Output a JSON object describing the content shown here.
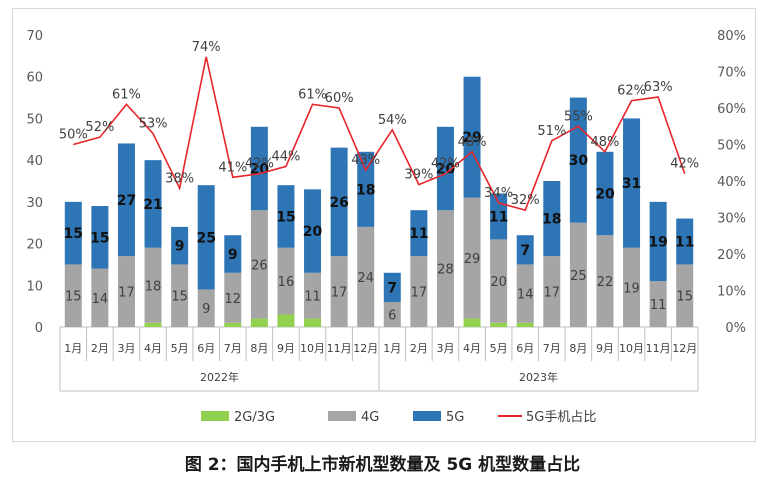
{
  "caption": "图 2：国内手机上市新机型数量及 5G 机型数量占比",
  "colors": {
    "c2g3g": "#92d050",
    "c4g": "#a5a5a5",
    "c5g": "#2e75b6",
    "line": "#e8262b"
  },
  "chart_data": {
    "type": "bar",
    "stacked": true,
    "categories": [
      "1月",
      "2月",
      "3月",
      "4月",
      "5月",
      "6月",
      "7月",
      "8月",
      "9月",
      "10月",
      "11月",
      "12月",
      "1月",
      "2月",
      "3月",
      "4月",
      "5月",
      "6月",
      "7月",
      "8月",
      "9月",
      "10月",
      "11月",
      "12月"
    ],
    "groups": [
      {
        "label": "2022年",
        "from": 0,
        "to": 11
      },
      {
        "label": "2023年",
        "from": 12,
        "to": 23
      }
    ],
    "series": [
      {
        "name": "2G/3G",
        "values": [
          0,
          0,
          0,
          1,
          0,
          0,
          1,
          2,
          3,
          2,
          0,
          0,
          0,
          0,
          0,
          2,
          1,
          1,
          0,
          0,
          0,
          0,
          0,
          0
        ],
        "labels": [
          "",
          "",
          "",
          "",
          "",
          "",
          "",
          "",
          "",
          "",
          "",
          "",
          "",
          "",
          "",
          "",
          "",
          "",
          "",
          "",
          "",
          "",
          "",
          ""
        ]
      },
      {
        "name": "4G",
        "values": [
          15,
          14,
          17,
          18,
          15,
          9,
          12,
          26,
          16,
          11,
          17,
          24,
          6,
          17,
          28,
          29,
          20,
          14,
          17,
          25,
          22,
          19,
          11,
          15
        ],
        "labels": [
          "15",
          "14",
          "17",
          "18",
          "15",
          "9",
          "12",
          "26",
          "16",
          "11",
          "17",
          "24",
          "6",
          "17",
          "28",
          "29",
          "20",
          "14",
          "17",
          "25",
          "22",
          "19",
          "11",
          "15"
        ]
      },
      {
        "name": "5G",
        "values": [
          15,
          15,
          27,
          21,
          9,
          25,
          9,
          20,
          15,
          20,
          26,
          18,
          7,
          11,
          20,
          29,
          11,
          7,
          18,
          30,
          20,
          31,
          19,
          11
        ],
        "labels": [
          "15",
          "15",
          "27",
          "21",
          "9",
          "25",
          "9",
          "20",
          "15",
          "20",
          "26",
          "18",
          "7",
          "11",
          "20",
          "29",
          "11",
          "7",
          "18",
          "30",
          "20",
          "31",
          "19",
          "11"
        ]
      },
      {
        "name": "5G手机占比",
        "type": "line",
        "axis": "right",
        "values": [
          50,
          52,
          61,
          53,
          38,
          74,
          41,
          42,
          44,
          61,
          60,
          43,
          54,
          39,
          42,
          48,
          34,
          32,
          51,
          55,
          48,
          62,
          63,
          42
        ],
        "labels": [
          "50%",
          "52%",
          "61%",
          "53%",
          "38%",
          "74%",
          "41%",
          "42%",
          "44%",
          "61%",
          "60%",
          "43%",
          "54%",
          "39%",
          "42%",
          "48%",
          "34%",
          "32%",
          "51%",
          "55%",
          "48%",
          "62%",
          "63%",
          "42%"
        ]
      }
    ],
    "y_left": {
      "min": 0,
      "max": 70,
      "ticks": [
        "0",
        "10",
        "20",
        "30",
        "40",
        "50",
        "60",
        "70"
      ]
    },
    "y_right": {
      "min": 0,
      "max": 80,
      "ticks": [
        "0%",
        "10%",
        "20%",
        "30%",
        "40%",
        "50%",
        "60%",
        "70%",
        "80%"
      ]
    },
    "legend": [
      "2G/3G",
      "4G",
      "5G",
      "5G手机占比"
    ],
    "legend_position": "bottom",
    "grid": false
  }
}
